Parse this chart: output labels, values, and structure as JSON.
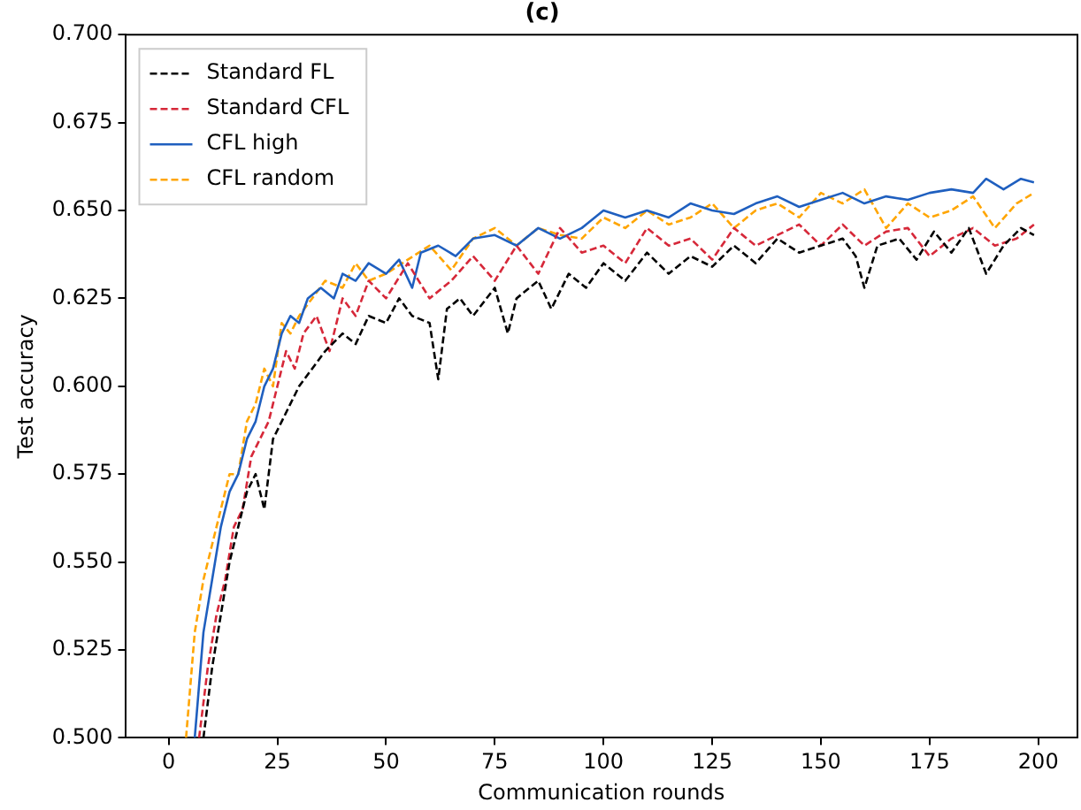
{
  "chart_data": {
    "type": "line",
    "title": "(c)",
    "xlabel": "Communication rounds",
    "ylabel": "Test accuracy",
    "xlim": [
      -10,
      209
    ],
    "xticks": [
      0,
      25,
      50,
      75,
      100,
      125,
      150,
      175,
      200
    ],
    "ylim": [
      0.5,
      0.7
    ],
    "yticks": [
      {
        "value": 0.5,
        "label": "0.500"
      },
      0.525,
      {
        "value": 0.55,
        "label": "0.550"
      },
      0.575,
      {
        "value": 0.6,
        "label": "0.600"
      },
      0.625,
      {
        "value": 0.65,
        "label": "0.650"
      },
      0.675,
      {
        "value": 0.7,
        "label": "0.700"
      }
    ],
    "legend": "top left",
    "grid": false,
    "marker": "none",
    "series": [
      {
        "name": "Standard FL",
        "color": "#000000",
        "line_style": "dashed",
        "x": [
          8,
          10,
          12,
          14,
          16,
          18,
          20,
          22,
          24,
          26,
          28,
          30,
          33,
          36,
          40,
          43,
          46,
          50,
          53,
          56,
          60,
          62,
          64,
          67,
          70,
          75,
          78,
          80,
          85,
          88,
          92,
          96,
          100,
          105,
          110,
          115,
          120,
          125,
          130,
          135,
          140,
          145,
          150,
          155,
          158,
          160,
          163,
          168,
          172,
          176,
          180,
          184,
          188,
          192,
          196,
          199
        ],
        "values": [
          0.5,
          0.52,
          0.535,
          0.55,
          0.56,
          0.57,
          0.575,
          0.565,
          0.585,
          0.59,
          0.595,
          0.6,
          0.605,
          0.61,
          0.615,
          0.612,
          0.62,
          0.618,
          0.625,
          0.62,
          0.618,
          0.602,
          0.622,
          0.625,
          0.62,
          0.628,
          0.615,
          0.625,
          0.63,
          0.622,
          0.632,
          0.628,
          0.635,
          0.63,
          0.638,
          0.632,
          0.637,
          0.634,
          0.64,
          0.635,
          0.642,
          0.638,
          0.64,
          0.642,
          0.637,
          0.628,
          0.64,
          0.642,
          0.636,
          0.644,
          0.638,
          0.645,
          0.632,
          0.64,
          0.645,
          0.643
        ]
      },
      {
        "name": "Standard CFL",
        "color": "#d62839",
        "line_style": "dashed",
        "x": [
          7,
          9,
          11,
          13,
          15,
          17,
          19,
          21,
          23,
          25,
          27,
          29,
          31,
          34,
          37,
          40,
          43,
          46,
          50,
          55,
          60,
          65,
          70,
          75,
          80,
          85,
          90,
          95,
          100,
          105,
          110,
          115,
          120,
          125,
          130,
          135,
          140,
          145,
          150,
          155,
          160,
          165,
          170,
          175,
          180,
          185,
          190,
          195,
          199
        ],
        "values": [
          0.5,
          0.52,
          0.535,
          0.545,
          0.56,
          0.565,
          0.58,
          0.585,
          0.59,
          0.6,
          0.61,
          0.605,
          0.615,
          0.62,
          0.61,
          0.625,
          0.62,
          0.63,
          0.625,
          0.635,
          0.625,
          0.63,
          0.637,
          0.63,
          0.64,
          0.632,
          0.645,
          0.638,
          0.64,
          0.635,
          0.645,
          0.64,
          0.642,
          0.636,
          0.645,
          0.64,
          0.643,
          0.646,
          0.64,
          0.646,
          0.64,
          0.644,
          0.645,
          0.637,
          0.642,
          0.645,
          0.64,
          0.642,
          0.646
        ]
      },
      {
        "name": "CFL high",
        "color": "#1f5fbf",
        "line_style": "solid",
        "x": [
          6,
          8,
          10,
          12,
          14,
          16,
          18,
          20,
          22,
          24,
          26,
          28,
          30,
          32,
          35,
          38,
          40,
          43,
          46,
          50,
          53,
          56,
          58,
          62,
          66,
          70,
          75,
          80,
          85,
          90,
          95,
          100,
          105,
          110,
          115,
          120,
          125,
          130,
          135,
          140,
          145,
          150,
          155,
          160,
          165,
          170,
          175,
          180,
          185,
          188,
          192,
          196,
          199
        ],
        "values": [
          0.5,
          0.53,
          0.545,
          0.56,
          0.57,
          0.575,
          0.585,
          0.59,
          0.6,
          0.605,
          0.615,
          0.62,
          0.618,
          0.625,
          0.628,
          0.625,
          0.632,
          0.63,
          0.635,
          0.632,
          0.636,
          0.628,
          0.638,
          0.64,
          0.637,
          0.642,
          0.643,
          0.64,
          0.645,
          0.642,
          0.645,
          0.65,
          0.648,
          0.65,
          0.648,
          0.652,
          0.65,
          0.649,
          0.652,
          0.654,
          0.651,
          0.653,
          0.655,
          0.652,
          0.654,
          0.653,
          0.655,
          0.656,
          0.655,
          0.659,
          0.656,
          0.659,
          0.658
        ]
      },
      {
        "name": "CFL random",
        "color": "#ffa500",
        "line_style": "dashed",
        "x": [
          4,
          6,
          8,
          10,
          12,
          14,
          16,
          18,
          20,
          22,
          24,
          26,
          28,
          30,
          33,
          36,
          40,
          43,
          46,
          50,
          55,
          60,
          65,
          70,
          75,
          80,
          85,
          90,
          95,
          100,
          105,
          110,
          115,
          120,
          125,
          130,
          135,
          140,
          145,
          150,
          155,
          160,
          165,
          170,
          175,
          180,
          185,
          190,
          195,
          199
        ],
        "values": [
          0.5,
          0.53,
          0.545,
          0.555,
          0.565,
          0.575,
          0.575,
          0.59,
          0.595,
          0.605,
          0.6,
          0.618,
          0.615,
          0.62,
          0.625,
          0.63,
          0.628,
          0.635,
          0.63,
          0.632,
          0.636,
          0.64,
          0.633,
          0.642,
          0.645,
          0.64,
          0.645,
          0.643,
          0.642,
          0.648,
          0.645,
          0.65,
          0.646,
          0.648,
          0.652,
          0.645,
          0.65,
          0.652,
          0.648,
          0.655,
          0.652,
          0.656,
          0.645,
          0.652,
          0.648,
          0.65,
          0.654,
          0.645,
          0.652,
          0.655
        ]
      }
    ]
  }
}
